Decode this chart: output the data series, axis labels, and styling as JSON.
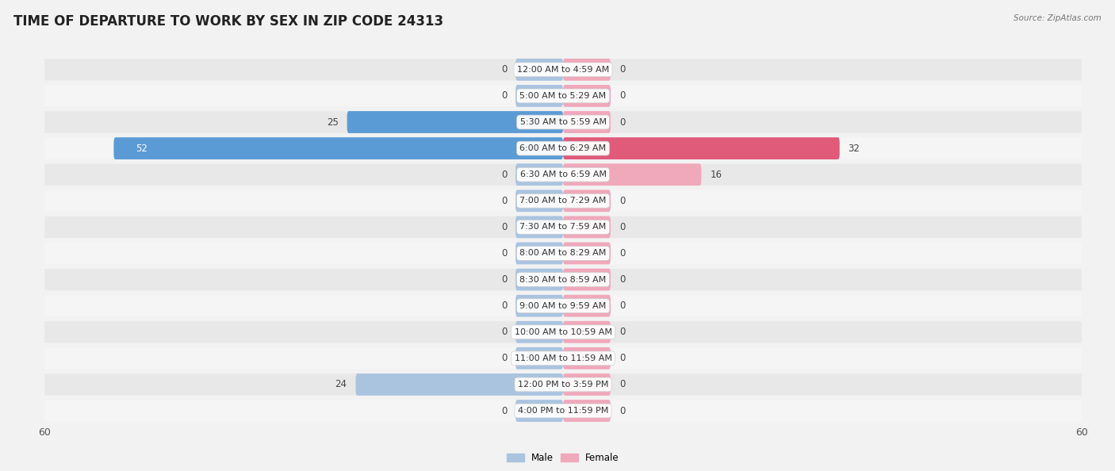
{
  "title": "TIME OF DEPARTURE TO WORK BY SEX IN ZIP CODE 24313",
  "source": "Source: ZipAtlas.com",
  "categories": [
    "12:00 AM to 4:59 AM",
    "5:00 AM to 5:29 AM",
    "5:30 AM to 5:59 AM",
    "6:00 AM to 6:29 AM",
    "6:30 AM to 6:59 AM",
    "7:00 AM to 7:29 AM",
    "7:30 AM to 7:59 AM",
    "8:00 AM to 8:29 AM",
    "8:30 AM to 8:59 AM",
    "9:00 AM to 9:59 AM",
    "10:00 AM to 10:59 AM",
    "11:00 AM to 11:59 AM",
    "12:00 PM to 3:59 PM",
    "4:00 PM to 11:59 PM"
  ],
  "male_values": [
    0,
    0,
    25,
    52,
    0,
    0,
    0,
    0,
    0,
    0,
    0,
    0,
    24,
    0
  ],
  "female_values": [
    0,
    0,
    0,
    32,
    16,
    0,
    0,
    0,
    0,
    0,
    0,
    0,
    0,
    0
  ],
  "male_color_strong": "#5b9bd5",
  "male_color_weak": "#aac4e0",
  "female_color_strong": "#e05a7a",
  "female_color_weak": "#f0a8bb",
  "axis_max": 60,
  "background_color": "#f2f2f2",
  "row_even_color": "#e8e8e8",
  "row_odd_color": "#f5f5f5",
  "title_fontsize": 12,
  "cat_fontsize": 8,
  "value_fontsize": 8.5,
  "tick_fontsize": 9,
  "min_bar_width": 5
}
